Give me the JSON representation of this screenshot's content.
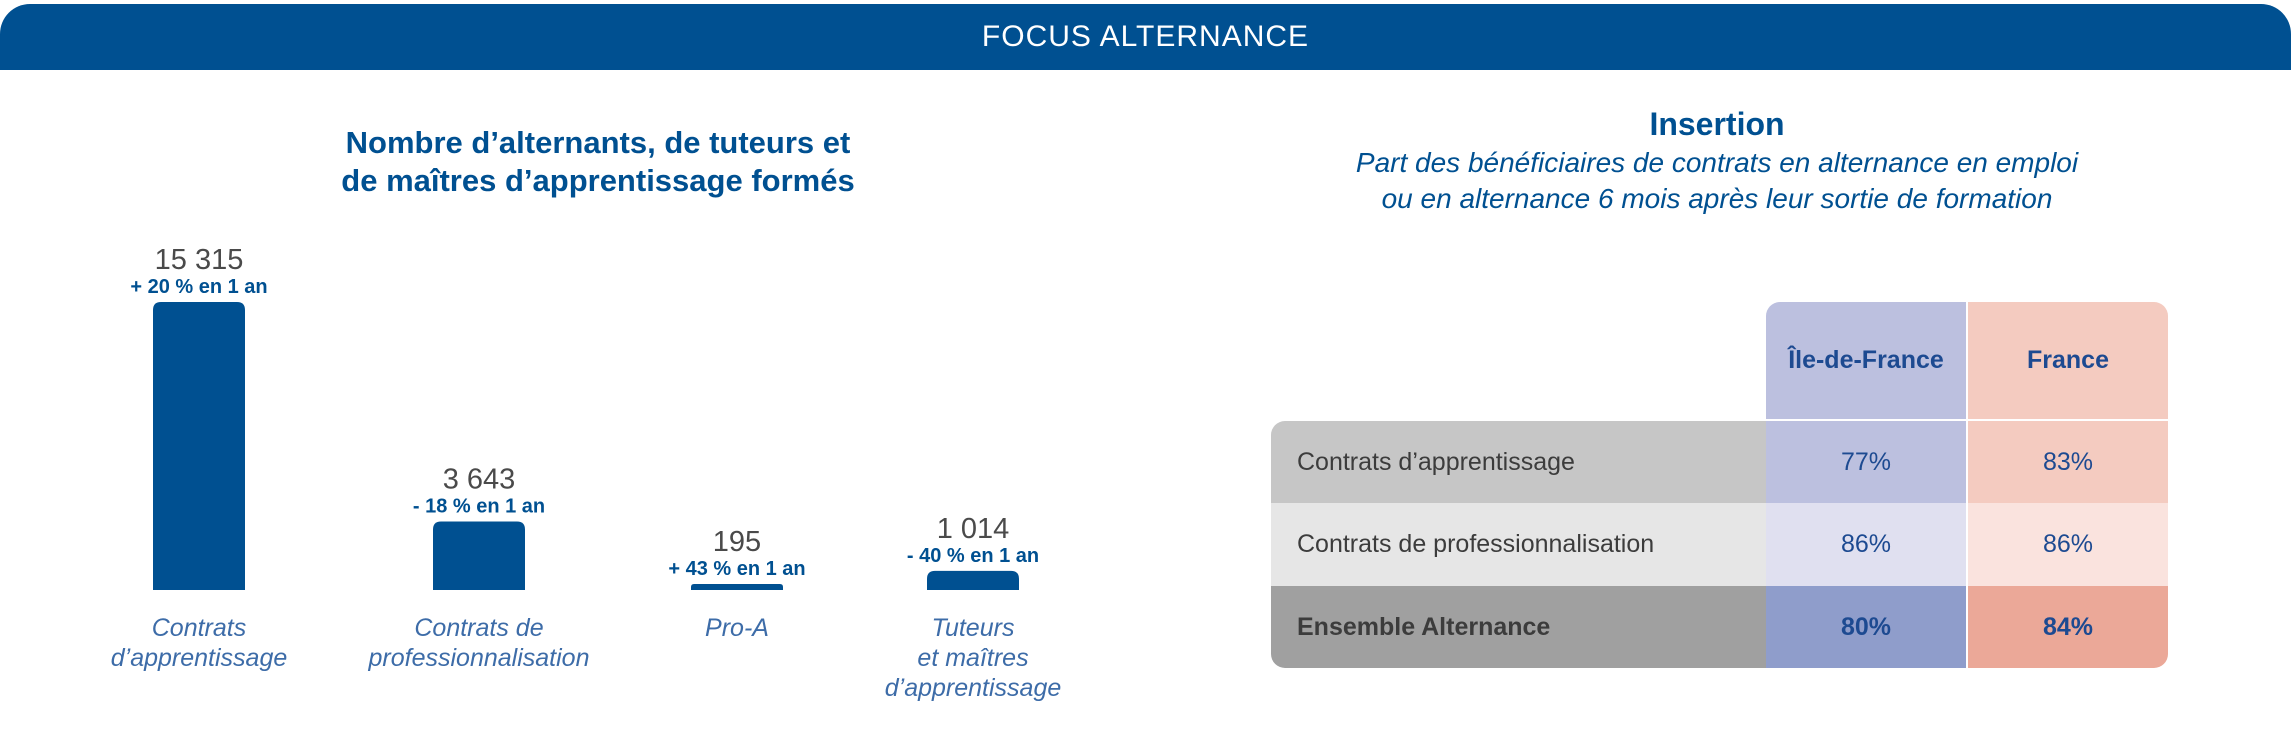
{
  "banner": {
    "title": "FOCUS ALTERNANCE"
  },
  "chart_data": {
    "type": "bar",
    "title_line1": "Nombre d’alternants, de tuteurs et",
    "title_line2": "de maîtres d’apprentissage formés",
    "categories": [
      [
        "Contrats",
        "d’apprentissage"
      ],
      [
        "Contrats de",
        "professionnalisation"
      ],
      [
        "Pro-A"
      ],
      [
        "Tuteurs",
        "et maîtres",
        "d’apprentissage"
      ]
    ],
    "values": [
      15315,
      3643,
      195,
      1014
    ],
    "value_labels": [
      "15 315",
      "3 643",
      "195",
      "1 014"
    ],
    "change_labels": [
      "+ 20 % en 1 an",
      "- 18 % en 1 an",
      "+ 43 % en 1 an",
      "- 40 % en 1 an"
    ],
    "color": "#005091"
  },
  "insertion": {
    "title": "Insertion",
    "subtitle_line1": "Part des bénéficiaires de contrats en alternance en emploi",
    "subtitle_line2": "ou en alternance 6 mois après leur sortie de formation",
    "columns": [
      "Île-de-France",
      "France"
    ],
    "rows": [
      {
        "label": "Contrats d’apprentissage",
        "idf": "77%",
        "france": "83%"
      },
      {
        "label": "Contrats de professionnalisation",
        "idf": "86%",
        "france": "86%"
      },
      {
        "label": "Ensemble Alternance",
        "idf": "80%",
        "france": "84%"
      }
    ],
    "colors": {
      "idf_header": "#bcc0df",
      "idf_row1": "#bcc0df",
      "idf_row2": "#e0e0f0",
      "idf_row3": "#8f9dcb",
      "fr_header": "#f4cbc0",
      "fr_row1": "#f4cbc0",
      "fr_row2": "#fae3de",
      "fr_row3": "#eba898",
      "label_row1": "#c6c6c6",
      "label_row2": "#e6e6e6",
      "label_row3": "#a0a0a0"
    }
  }
}
